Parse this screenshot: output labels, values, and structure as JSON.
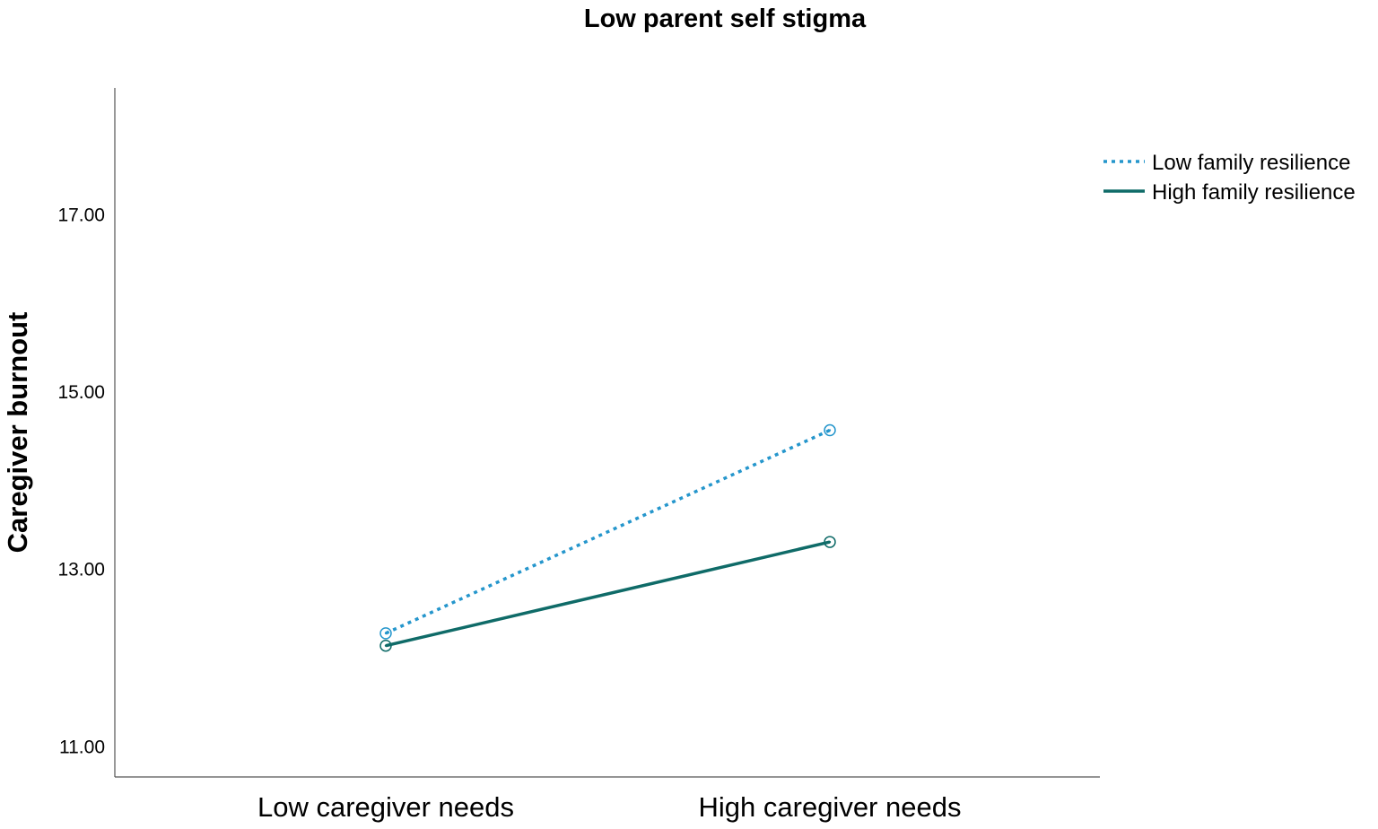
{
  "chart_data": {
    "type": "line",
    "title": "Low parent self stigma",
    "xlabel": "",
    "ylabel": "Caregiver burnout",
    "categories": [
      "Low caregiver needs",
      "High caregiver needs"
    ],
    "yticks": [
      "11.00",
      "13.00",
      "15.00",
      "17.00"
    ],
    "ylim": [
      10.65,
      18.42
    ],
    "grid": false,
    "legend_position": "top-right",
    "series": [
      {
        "name": "Low family resilience",
        "values": [
          12.27,
          14.56
        ],
        "color": "#2596cc",
        "style": "dotted"
      },
      {
        "name": "High family resilience",
        "values": [
          12.13,
          13.3
        ],
        "color": "#0f6b68",
        "style": "solid"
      }
    ]
  }
}
